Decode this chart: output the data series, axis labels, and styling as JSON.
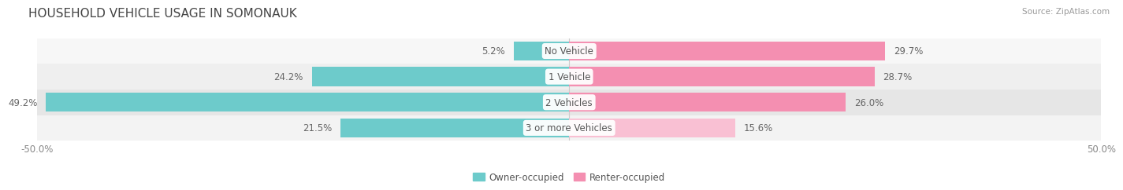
{
  "title": "HOUSEHOLD VEHICLE USAGE IN SOMONAUK",
  "source": "Source: ZipAtlas.com",
  "categories": [
    "No Vehicle",
    "1 Vehicle",
    "2 Vehicles",
    "3 or more Vehicles"
  ],
  "owner_values": [
    5.2,
    24.2,
    49.2,
    21.5
  ],
  "renter_values": [
    29.7,
    28.7,
    26.0,
    15.6
  ],
  "owner_color": "#6dcbcb",
  "renter_color_normal": "#f48fb1",
  "renter_color_light": "#f9c0d3",
  "renter_colors": [
    "#f48fb1",
    "#f48fb1",
    "#f48fb1",
    "#f9c0d3"
  ],
  "bar_bg_colors": [
    "#f5f5f5",
    "#eeeeee",
    "#e8e8e8",
    "#f0f0f0"
  ],
  "axis_min": -50.0,
  "axis_max": 50.0,
  "legend_owner": "Owner-occupied",
  "legend_renter": "Renter-occupied",
  "title_fontsize": 11,
  "label_fontsize": 8.5,
  "tick_fontsize": 8.5,
  "bar_height": 0.75,
  "background_color": "#ffffff",
  "row_bg_colors": [
    "#f7f7f7",
    "#efefef",
    "#e6e6e6",
    "#f3f3f3"
  ]
}
